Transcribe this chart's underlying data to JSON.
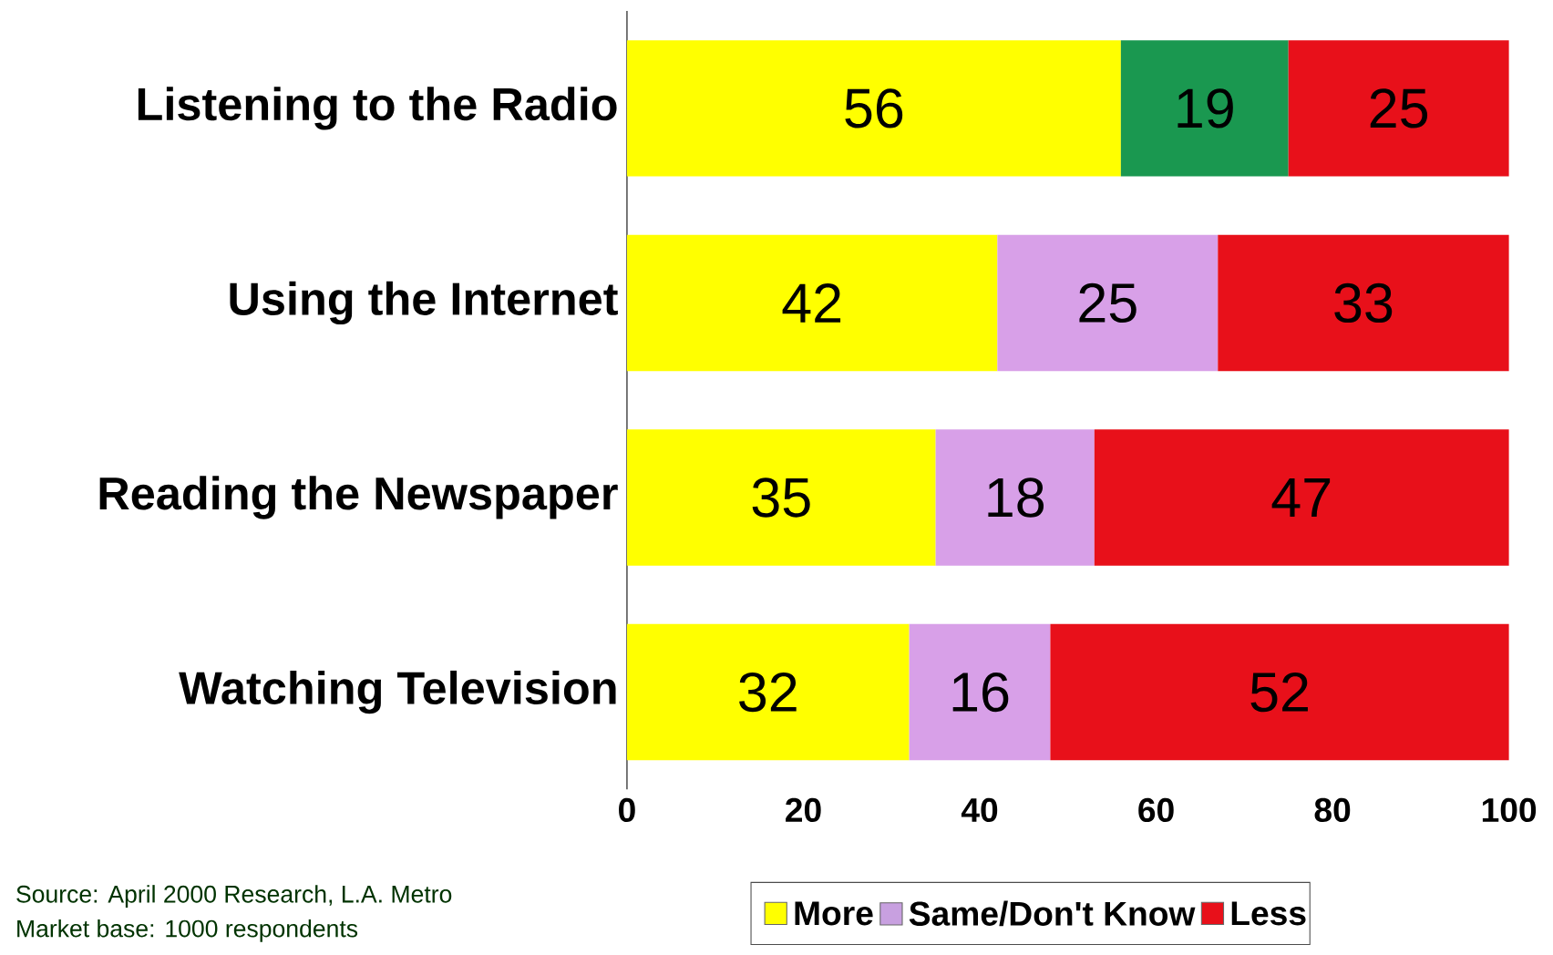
{
  "chart_data": {
    "type": "bar",
    "orientation": "horizontal",
    "stacked": true,
    "data_labels": true,
    "legend": "bottom right",
    "grid": false,
    "categories": [
      "Listening to the Radio",
      "Using the Internet",
      "Reading the Newspaper",
      "Watching Television"
    ],
    "series": [
      {
        "name": "More",
        "color": "#ffff00",
        "values": [
          56,
          42,
          35,
          32
        ]
      },
      {
        "name": "Same/Don't Know",
        "color": "#c8a0e0",
        "colors": [
          "#1a9850",
          "#d8a0e8",
          "#d8a0e8",
          "#d8a0e8"
        ],
        "values": [
          19,
          25,
          18,
          16
        ]
      },
      {
        "name": "Less",
        "color": "#e8101a",
        "values": [
          25,
          33,
          47,
          52
        ]
      }
    ],
    "xlim": [
      0,
      100
    ],
    "xticks": [
      0,
      20,
      40,
      60,
      80,
      100
    ],
    "annotations": [
      "Source: April 2000 Research, L.A. Metro",
      "Market base: 1000 respondents"
    ]
  }
}
